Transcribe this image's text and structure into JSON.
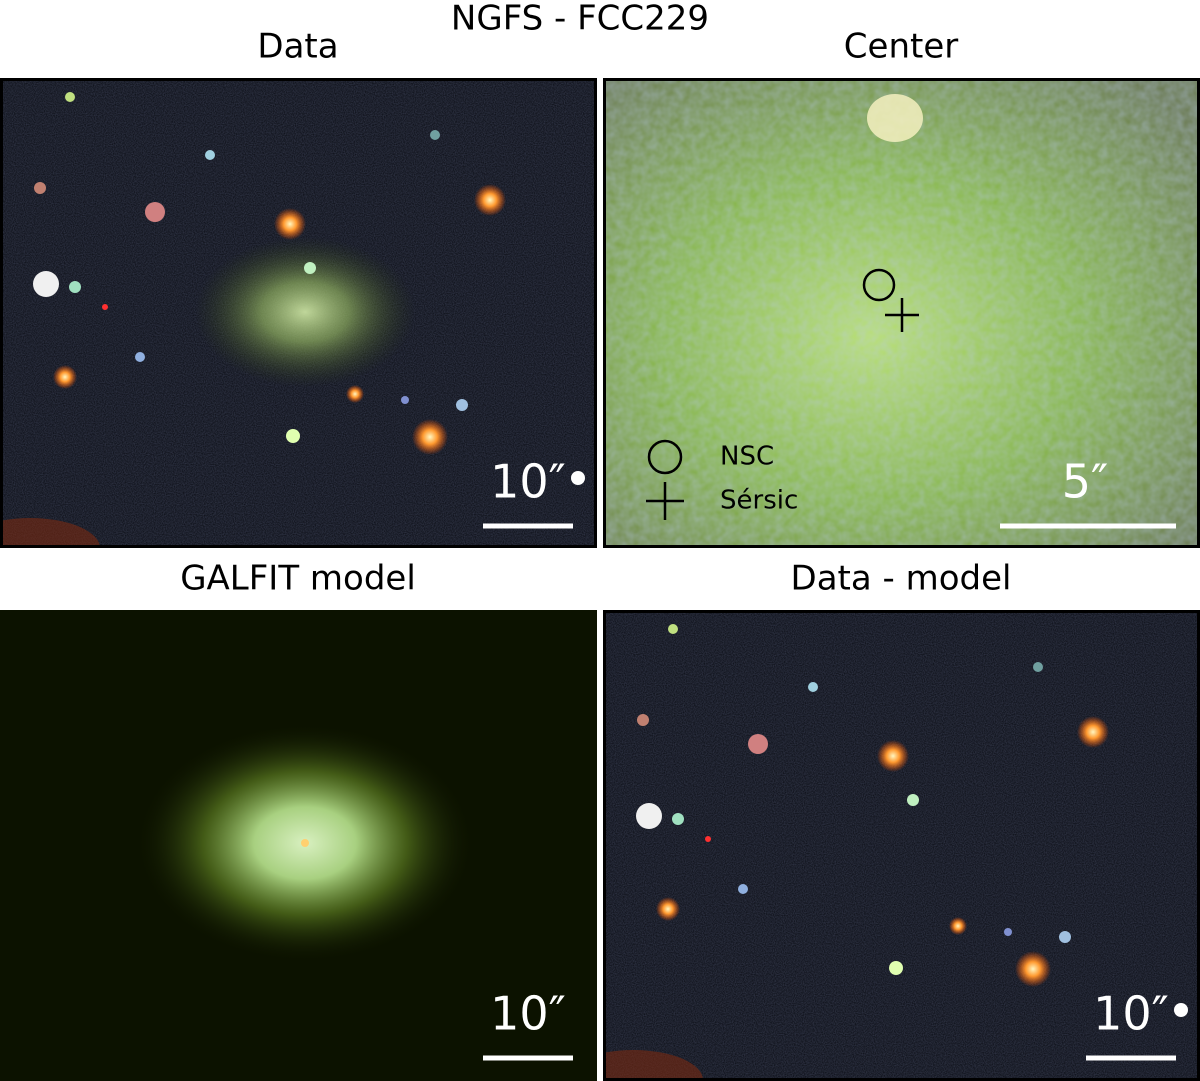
{
  "title": "NGFS - FCC229",
  "panels": [
    {
      "title": "Data",
      "scale_label": "10″"
    },
    {
      "title": "Center",
      "scale_label": "5″",
      "legend": [
        "NSC",
        "Sérsic"
      ]
    },
    {
      "title": "GALFIT model",
      "scale_label": "10″"
    },
    {
      "title": "Data - model",
      "scale_label": "10″"
    }
  ]
}
